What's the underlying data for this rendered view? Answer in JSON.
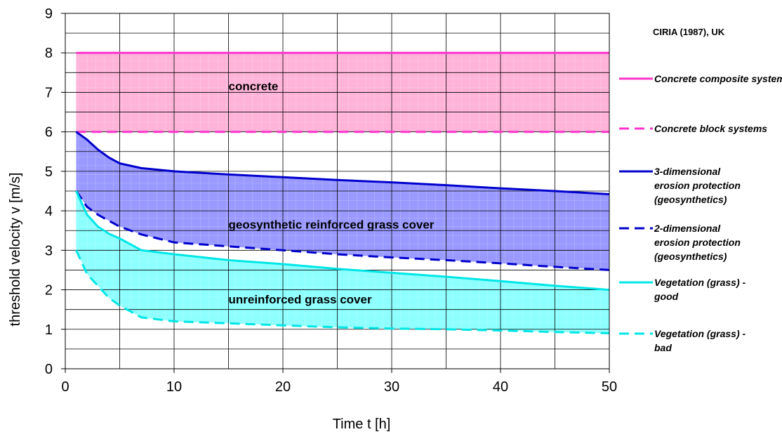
{
  "chart_data": {
    "type": "line",
    "source": "CIRIA (1987), UK",
    "xlabel": "Time t [h]",
    "ylabel": "threshold velocity v [m/s]",
    "xlim": [
      0,
      50
    ],
    "ylim": [
      0,
      9
    ],
    "x_ticks": [
      "0",
      "10",
      "20",
      "30",
      "40",
      "50"
    ],
    "y_ticks": [
      "0",
      "1",
      "2",
      "3",
      "4",
      "5",
      "6",
      "7",
      "8",
      "9"
    ],
    "grid": true,
    "legend_position": "right",
    "regions": [
      {
        "label": "concrete",
        "upper": "Concrete composite systems",
        "lower": "Concrete block systems",
        "color": "#ff99cc",
        "label_at": [
          15,
          7.05
        ]
      },
      {
        "label": "geosynthetic reinforced grass cover",
        "upper": "3-dimensional erosion protection (geosynthetics)",
        "lower": "2-dimensional erosion protection (geosynthetics)",
        "color": "#7777ff",
        "label_at": [
          15,
          3.55
        ]
      },
      {
        "label": "unreinforced grass cover",
        "upper": "Vegetation (grass) - good",
        "lower": "Vegetation (grass) - bad",
        "color": "#66ffff",
        "label_at": [
          15,
          1.65
        ]
      }
    ],
    "series": [
      {
        "name": "Concrete composite systems",
        "legend_lines": [
          "Concrete composite systems"
        ],
        "color": "#ff33cc",
        "dash": "solid",
        "x": [
          1,
          50
        ],
        "y": [
          8,
          8
        ]
      },
      {
        "name": "Concrete block systems",
        "legend_lines": [
          "Concrete block systems"
        ],
        "color": "#ff33cc",
        "dash": "dashed",
        "x": [
          1,
          50
        ],
        "y": [
          6,
          6
        ]
      },
      {
        "name": "3-dimensional erosion protection (geosynthetics)",
        "legend_lines": [
          "3-dimensional",
          "erosion protection",
          "(geosynthetics)"
        ],
        "color": "#0000cc",
        "dash": "solid",
        "x": [
          1,
          2,
          3,
          4,
          5,
          7,
          10,
          15,
          20,
          25,
          30,
          35,
          40,
          45,
          50
        ],
        "y": [
          6.0,
          5.8,
          5.55,
          5.35,
          5.2,
          5.08,
          5.0,
          4.92,
          4.85,
          4.78,
          4.72,
          4.65,
          4.57,
          4.5,
          4.42
        ]
      },
      {
        "name": "2-dimensional erosion protection (geosynthetics)",
        "legend_lines": [
          "2-dimensional",
          "erosion protection",
          "(geosynthetics)"
        ],
        "color": "#0000cc",
        "dash": "dashed",
        "x": [
          1,
          2,
          3,
          4,
          5,
          7,
          10,
          15,
          20,
          25,
          30,
          35,
          40,
          45,
          50
        ],
        "y": [
          4.5,
          4.1,
          3.9,
          3.75,
          3.6,
          3.4,
          3.2,
          3.1,
          3.0,
          2.9,
          2.82,
          2.75,
          2.67,
          2.58,
          2.5
        ]
      },
      {
        "name": "Vegetation (grass) - good",
        "legend_lines": [
          "Vegetation (grass) -",
          "good"
        ],
        "color": "#00e6e6",
        "dash": "solid",
        "x": [
          1,
          2,
          3,
          4,
          5,
          7,
          10,
          15,
          20,
          25,
          30,
          35,
          40,
          45,
          50
        ],
        "y": [
          4.5,
          3.9,
          3.6,
          3.42,
          3.3,
          3.0,
          2.9,
          2.75,
          2.65,
          2.53,
          2.43,
          2.33,
          2.22,
          2.1,
          2.0
        ]
      },
      {
        "name": "Vegetation (grass) - bad",
        "legend_lines": [
          "Vegetation (grass) -",
          "bad"
        ],
        "color": "#00e6e6",
        "dash": "dashed",
        "x": [
          1,
          2,
          3,
          4,
          5,
          7,
          10,
          15,
          20,
          25,
          30,
          35,
          40,
          45,
          50
        ],
        "y": [
          3.0,
          2.4,
          2.1,
          1.8,
          1.6,
          1.3,
          1.2,
          1.15,
          1.1,
          1.05,
          1.02,
          1.0,
          0.97,
          0.93,
          0.9
        ]
      }
    ]
  }
}
